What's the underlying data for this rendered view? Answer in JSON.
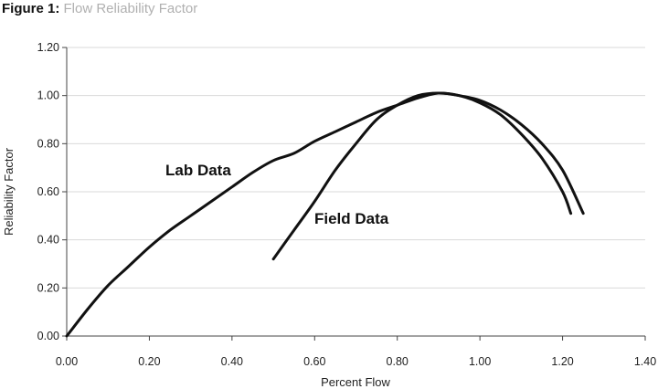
{
  "figure": {
    "label": "Figure 1:",
    "title": "Flow Reliability Factor"
  },
  "colors": {
    "line": "#111111",
    "grid": "#d9d9d9",
    "axis": "#444444",
    "caption_title": "#b0b0b0"
  },
  "chart_data": {
    "type": "line",
    "title": "Flow Reliability Factor",
    "xlabel": "Percent Flow",
    "ylabel": "Reliability Factor",
    "xlim": [
      0,
      1.4
    ],
    "ylim": [
      0,
      1.2
    ],
    "xticks": [
      0,
      0.2,
      0.4,
      0.6,
      0.8,
      1.0,
      1.2,
      1.4
    ],
    "xtick_labels": [
      "0.00",
      "0.20",
      "0.40",
      "0.60",
      "0.80",
      "1.00",
      "1.20",
      "1.40"
    ],
    "yticks": [
      0,
      0.2,
      0.4,
      0.6,
      0.8,
      1.0,
      1.2
    ],
    "ytick_labels": [
      "0.00",
      "0.20",
      "0.40",
      "0.60",
      "0.80",
      "1.00",
      "1.20"
    ],
    "grid": "horizontal",
    "legend": "none",
    "series": [
      {
        "name": "Lab Data",
        "x": [
          0.0,
          0.05,
          0.1,
          0.15,
          0.2,
          0.25,
          0.3,
          0.35,
          0.4,
          0.45,
          0.5,
          0.55,
          0.6,
          0.65,
          0.7,
          0.75,
          0.8,
          0.85,
          0.9,
          0.95,
          1.0,
          1.05,
          1.1,
          1.15,
          1.2,
          1.25
        ],
        "y": [
          0.0,
          0.11,
          0.21,
          0.29,
          0.37,
          0.44,
          0.5,
          0.56,
          0.62,
          0.68,
          0.73,
          0.76,
          0.81,
          0.85,
          0.89,
          0.93,
          0.96,
          0.99,
          1.01,
          1.0,
          0.98,
          0.94,
          0.88,
          0.8,
          0.69,
          0.51
        ]
      },
      {
        "name": "Field Data",
        "x": [
          0.5,
          0.55,
          0.6,
          0.65,
          0.7,
          0.75,
          0.8,
          0.85,
          0.9,
          0.95,
          1.0,
          1.05,
          1.1,
          1.15,
          1.2,
          1.22
        ],
        "y": [
          0.32,
          0.44,
          0.56,
          0.69,
          0.8,
          0.9,
          0.96,
          1.0,
          1.01,
          1.0,
          0.97,
          0.92,
          0.84,
          0.74,
          0.6,
          0.51
        ]
      }
    ]
  }
}
